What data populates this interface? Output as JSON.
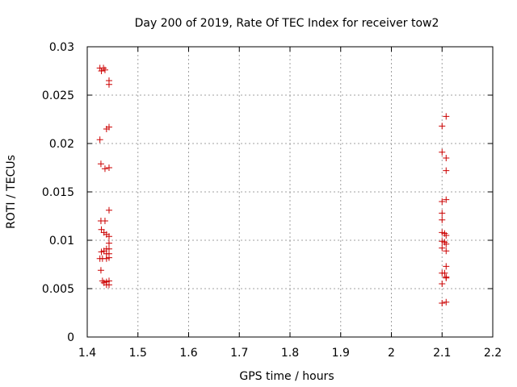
{
  "chart_data": {
    "type": "scatter",
    "title": "Day 200 of 2019, Rate Of TEC Index for receiver tow2",
    "xlabel": "GPS time / hours",
    "ylabel": "ROTI / TECUs",
    "xlim": [
      1.4,
      2.2
    ],
    "ylim": [
      0,
      0.03
    ],
    "xticks": [
      1.4,
      1.5,
      1.6,
      1.7,
      1.8,
      1.9,
      2.0,
      2.1,
      2.2
    ],
    "xtick_labels": [
      "1.4",
      "1.5",
      "1.6",
      "1.7",
      "1.8",
      "1.9",
      "2",
      "2.1",
      "2.2"
    ],
    "yticks": [
      0,
      0.005,
      0.01,
      0.015,
      0.02,
      0.025,
      0.03
    ],
    "ytick_labels": [
      "0",
      "0.005",
      "0.01",
      "0.015",
      "0.02",
      "0.025",
      "0.03"
    ],
    "grid": true,
    "marker": "+",
    "color": "#cc0000",
    "points": [
      [
        1.425,
        0.0278
      ],
      [
        1.428,
        0.0275
      ],
      [
        1.432,
        0.0278
      ],
      [
        1.435,
        0.0276
      ],
      [
        1.443,
        0.0265
      ],
      [
        1.443,
        0.0261
      ],
      [
        1.438,
        0.0215
      ],
      [
        1.443,
        0.0217
      ],
      [
        1.425,
        0.0204
      ],
      [
        1.427,
        0.0179
      ],
      [
        1.435,
        0.0174
      ],
      [
        1.443,
        0.0175
      ],
      [
        1.443,
        0.0131
      ],
      [
        1.427,
        0.012
      ],
      [
        1.435,
        0.012
      ],
      [
        1.428,
        0.0111
      ],
      [
        1.433,
        0.0108
      ],
      [
        1.438,
        0.0106
      ],
      [
        1.443,
        0.0104
      ],
      [
        1.443,
        0.0097
      ],
      [
        1.428,
        0.0088
      ],
      [
        1.433,
        0.0089
      ],
      [
        1.438,
        0.0091
      ],
      [
        1.443,
        0.0091
      ],
      [
        1.438,
        0.0086
      ],
      [
        1.443,
        0.0086
      ],
      [
        1.425,
        0.0081
      ],
      [
        1.43,
        0.0081
      ],
      [
        1.438,
        0.0081
      ],
      [
        1.443,
        0.0082
      ],
      [
        1.427,
        0.0069
      ],
      [
        1.43,
        0.0058
      ],
      [
        1.433,
        0.0056
      ],
      [
        1.438,
        0.0057
      ],
      [
        1.443,
        0.0058
      ],
      [
        1.438,
        0.0054
      ],
      [
        1.443,
        0.0054
      ],
      [
        2.108,
        0.0228
      ],
      [
        2.1,
        0.0218
      ],
      [
        2.1,
        0.0191
      ],
      [
        2.108,
        0.0185
      ],
      [
        2.108,
        0.0172
      ],
      [
        2.108,
        0.0142
      ],
      [
        2.1,
        0.014
      ],
      [
        2.1,
        0.0128
      ],
      [
        2.1,
        0.0121
      ],
      [
        2.1,
        0.0108
      ],
      [
        2.105,
        0.0107
      ],
      [
        2.108,
        0.0105
      ],
      [
        2.1,
        0.0099
      ],
      [
        2.105,
        0.0098
      ],
      [
        2.108,
        0.0096
      ],
      [
        2.1,
        0.0092
      ],
      [
        2.108,
        0.0089
      ],
      [
        2.108,
        0.0073
      ],
      [
        2.1,
        0.0066
      ],
      [
        2.105,
        0.0066
      ],
      [
        2.108,
        0.0062
      ],
      [
        2.108,
        0.0061
      ],
      [
        2.1,
        0.0055
      ],
      [
        2.1,
        0.0035
      ],
      [
        2.108,
        0.0036
      ]
    ]
  }
}
